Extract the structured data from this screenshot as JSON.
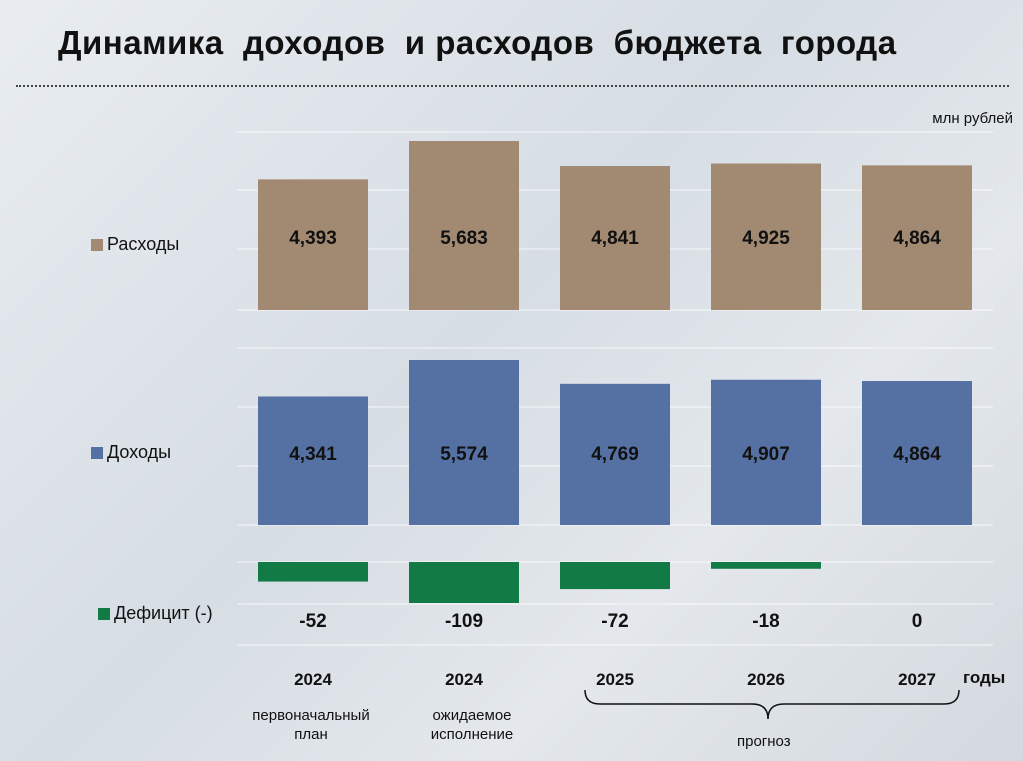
{
  "title": "Динамика  доходов  и расходов  бюджета  города",
  "unit": "млн рублей",
  "years_word": "годы",
  "forecast_label": "прогноз",
  "colors": {
    "expenses": "#a28a72",
    "income": "#5571a3",
    "deficit": "#127a45"
  },
  "chart_data": {
    "type": "bar",
    "categories": [
      "2024",
      "2024",
      "2025",
      "2026",
      "2027"
    ],
    "category_sublabels": [
      "первоначальный\nплан",
      "ожидаемое\nисполнение",
      "",
      "",
      ""
    ],
    "series": [
      {
        "name": "Расходы",
        "values": [
          4393,
          5683,
          4841,
          4925,
          4864
        ]
      },
      {
        "name": "Доходы",
        "values": [
          4341,
          5574,
          4769,
          4907,
          4864
        ]
      },
      {
        "name": "Дефицит (-)",
        "values": [
          -52,
          -109,
          -72,
          -18,
          0
        ]
      }
    ],
    "value_labels": {
      "Расходы": [
        "4,393",
        "5,683",
        "4,841",
        "4,925",
        "4,864"
      ],
      "Доходы": [
        "4,341",
        "5,574",
        "4,769",
        "4,907",
        "4,864"
      ],
      "Дефицит (-)": [
        "-52",
        "-109",
        "-72",
        "-18",
        "0"
      ]
    },
    "grid": true,
    "legend_position": "left"
  }
}
